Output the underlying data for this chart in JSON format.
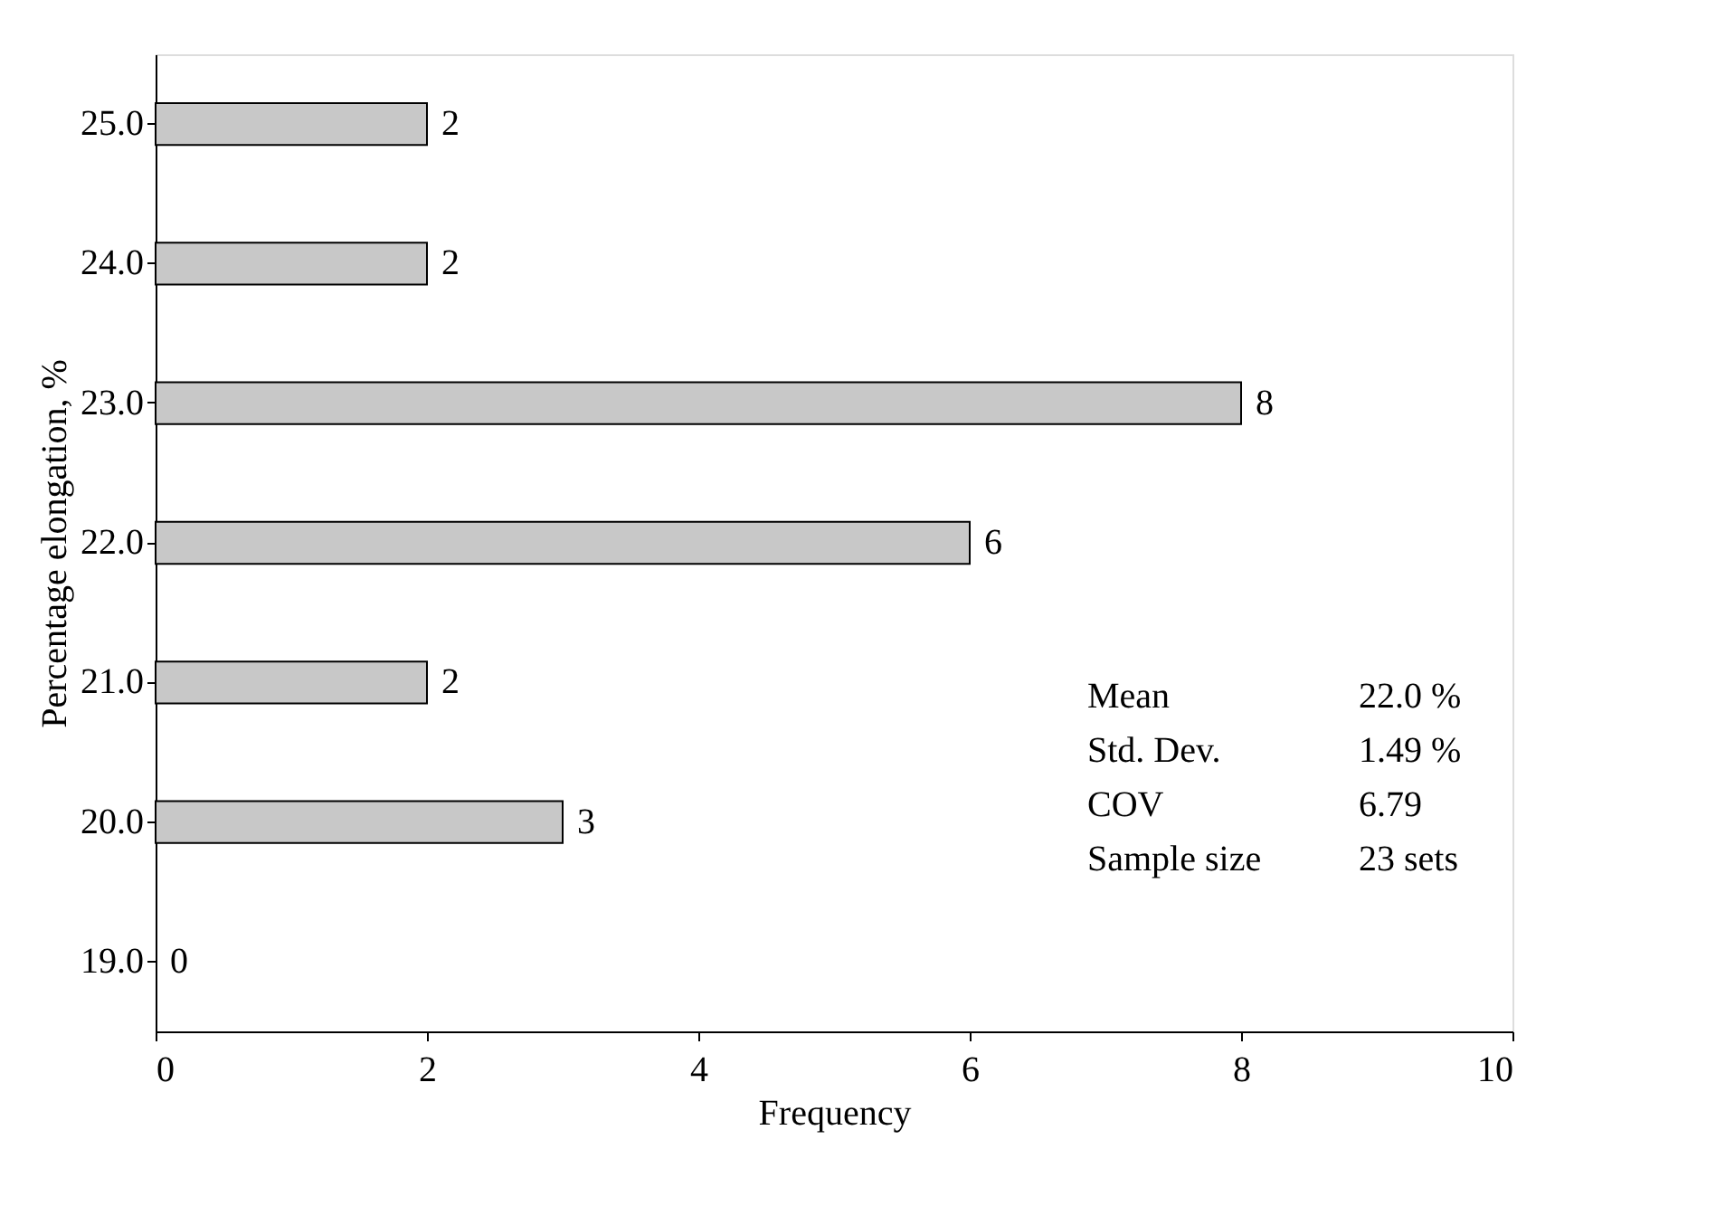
{
  "chart_data": {
    "type": "bar",
    "orientation": "horizontal",
    "xlabel": "Frequency",
    "ylabel": "Percentage elongation, %",
    "categories": [
      "25.0",
      "24.0",
      "23.0",
      "22.0",
      "21.0",
      "20.0",
      "19.0"
    ],
    "values": [
      2,
      2,
      8,
      6,
      2,
      3,
      0
    ],
    "color": "#c8c8c8",
    "xlim": [
      0,
      10
    ],
    "xticks": [
      0,
      2,
      4,
      6,
      8,
      10
    ],
    "grid": false,
    "data_labels": true,
    "annotations": [
      "Mean",
      "22.0 %",
      "Std. Dev.",
      "1.49 %",
      "COV",
      "6.79",
      "Sample size",
      "23 sets"
    ]
  }
}
